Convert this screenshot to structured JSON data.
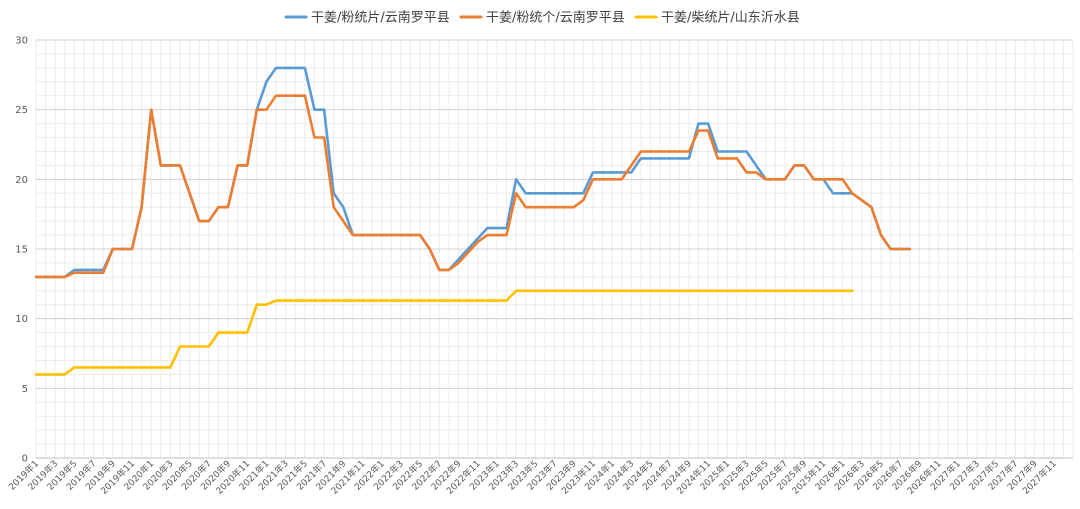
{
  "chart_data": {
    "type": "line",
    "title": "",
    "xlabel": "",
    "ylabel": "",
    "ylim": [
      0,
      30
    ],
    "yticks": [
      0,
      5,
      10,
      15,
      20,
      25,
      30
    ],
    "grid": true,
    "legend_position": "top",
    "x_tick_labels": [
      "2019年1",
      "2019年3",
      "2019年5",
      "2019年7",
      "2019年9",
      "2019年11",
      "2020年1",
      "2020年3",
      "2020年5",
      "2020年7",
      "2020年9",
      "2020年11",
      "2021年1",
      "2021年3",
      "2021年5",
      "2021年7",
      "2021年9",
      "2021年11",
      "2022年1",
      "2022年3",
      "2022年5",
      "2022年7",
      "2022年9",
      "2022年11",
      "2023年1",
      "2023年3",
      "2023年5",
      "2023年7",
      "2023年9",
      "2023年11",
      "2024年1",
      "2024年3",
      "2024年5",
      "2024年7",
      "2024年9",
      "2024年11",
      "2025年1",
      "2025年3",
      "2025年5",
      "2025年7",
      "2025年9",
      "2025年11",
      "2026年1",
      "2026年3",
      "2026年5",
      "2026年7",
      "2026年9",
      "2026年11",
      "2027年1",
      "2027年3",
      "2027年5",
      "2027年7",
      "2027年9",
      "2027年11"
    ],
    "series": [
      {
        "name": "干姜/粉统片/云南罗平县",
        "color": "#5B9BD5",
        "points": [
          [
            0,
            13
          ],
          [
            3,
            13
          ],
          [
            4,
            13.5
          ],
          [
            7,
            13.5
          ],
          [
            8,
            15
          ],
          [
            10,
            15
          ],
          [
            11,
            18
          ],
          [
            12,
            25
          ],
          [
            13,
            21
          ],
          [
            15,
            21
          ],
          [
            17,
            17
          ],
          [
            18,
            17
          ],
          [
            19,
            18
          ],
          [
            20,
            18
          ],
          [
            21,
            21
          ],
          [
            22,
            21
          ],
          [
            23,
            25
          ],
          [
            24,
            27
          ],
          [
            25,
            28
          ],
          [
            28,
            28
          ],
          [
            29,
            25
          ],
          [
            30,
            25
          ],
          [
            31,
            19
          ],
          [
            32,
            18
          ],
          [
            33,
            16
          ],
          [
            40,
            16
          ],
          [
            41,
            15
          ],
          [
            42,
            13.5
          ],
          [
            43,
            13.5
          ],
          [
            45,
            15
          ],
          [
            47,
            16.5
          ],
          [
            49,
            16.5
          ],
          [
            50,
            20
          ],
          [
            51,
            19
          ],
          [
            56,
            19
          ],
          [
            57,
            19
          ],
          [
            58,
            20.5
          ],
          [
            62,
            20.5
          ],
          [
            63,
            21.5
          ],
          [
            64,
            21.5
          ],
          [
            68,
            21.5
          ],
          [
            69,
            24
          ],
          [
            70,
            24
          ],
          [
            71,
            22
          ],
          [
            74,
            22
          ],
          [
            75,
            21
          ],
          [
            76,
            20
          ],
          [
            78,
            20
          ],
          [
            79,
            21
          ],
          [
            80,
            21
          ],
          [
            81,
            20
          ],
          [
            82,
            20
          ],
          [
            83,
            19
          ],
          [
            85,
            19
          ],
          [
            86,
            18.5
          ],
          [
            87,
            18
          ],
          [
            88,
            16
          ],
          [
            89,
            15
          ],
          [
            91,
            15
          ]
        ]
      },
      {
        "name": "干姜/粉统个/云南罗平县",
        "color": "#ED7D31",
        "points": [
          [
            0,
            13
          ],
          [
            3,
            13
          ],
          [
            4,
            13.3
          ],
          [
            7,
            13.3
          ],
          [
            8,
            15
          ],
          [
            10,
            15
          ],
          [
            11,
            18
          ],
          [
            12,
            25
          ],
          [
            13,
            21
          ],
          [
            15,
            21
          ],
          [
            17,
            17
          ],
          [
            18,
            17
          ],
          [
            19,
            18
          ],
          [
            20,
            18
          ],
          [
            21,
            21
          ],
          [
            22,
            21
          ],
          [
            23,
            25
          ],
          [
            24,
            25
          ],
          [
            25,
            26
          ],
          [
            28,
            26
          ],
          [
            29,
            23
          ],
          [
            30,
            23
          ],
          [
            31,
            18
          ],
          [
            32,
            17
          ],
          [
            33,
            16
          ],
          [
            40,
            16
          ],
          [
            41,
            15
          ],
          [
            42,
            13.5
          ],
          [
            43,
            13.5
          ],
          [
            44,
            14
          ],
          [
            46,
            15.5
          ],
          [
            47,
            16
          ],
          [
            49,
            16
          ],
          [
            50,
            19
          ],
          [
            51,
            18
          ],
          [
            56,
            18
          ],
          [
            57,
            18.5
          ],
          [
            58,
            20
          ],
          [
            60,
            20
          ],
          [
            61,
            20
          ],
          [
            62,
            21
          ],
          [
            63,
            22
          ],
          [
            68,
            22
          ],
          [
            69,
            23.5
          ],
          [
            70,
            23.5
          ],
          [
            71,
            21.5
          ],
          [
            73,
            21.5
          ],
          [
            74,
            20.5
          ],
          [
            75,
            20.5
          ],
          [
            76,
            20
          ],
          [
            78,
            20
          ],
          [
            79,
            21
          ],
          [
            80,
            21
          ],
          [
            81,
            20
          ],
          [
            84,
            20
          ],
          [
            85,
            19
          ],
          [
            86,
            18.5
          ],
          [
            87,
            18
          ],
          [
            88,
            16
          ],
          [
            89,
            15
          ],
          [
            91,
            15
          ]
        ]
      },
      {
        "name": "干姜/柴统片/山东沂水县",
        "color": "#FFC000",
        "points": [
          [
            0,
            6
          ],
          [
            3,
            6
          ],
          [
            4,
            6.5
          ],
          [
            14,
            6.5
          ],
          [
            15,
            8
          ],
          [
            18,
            8
          ],
          [
            19,
            9
          ],
          [
            22,
            9
          ],
          [
            23,
            11
          ],
          [
            24,
            11
          ],
          [
            25,
            11.3
          ],
          [
            48,
            11.3
          ],
          [
            49,
            11.3
          ],
          [
            50,
            12
          ],
          [
            64,
            12
          ],
          [
            85,
            12
          ]
        ]
      }
    ]
  }
}
